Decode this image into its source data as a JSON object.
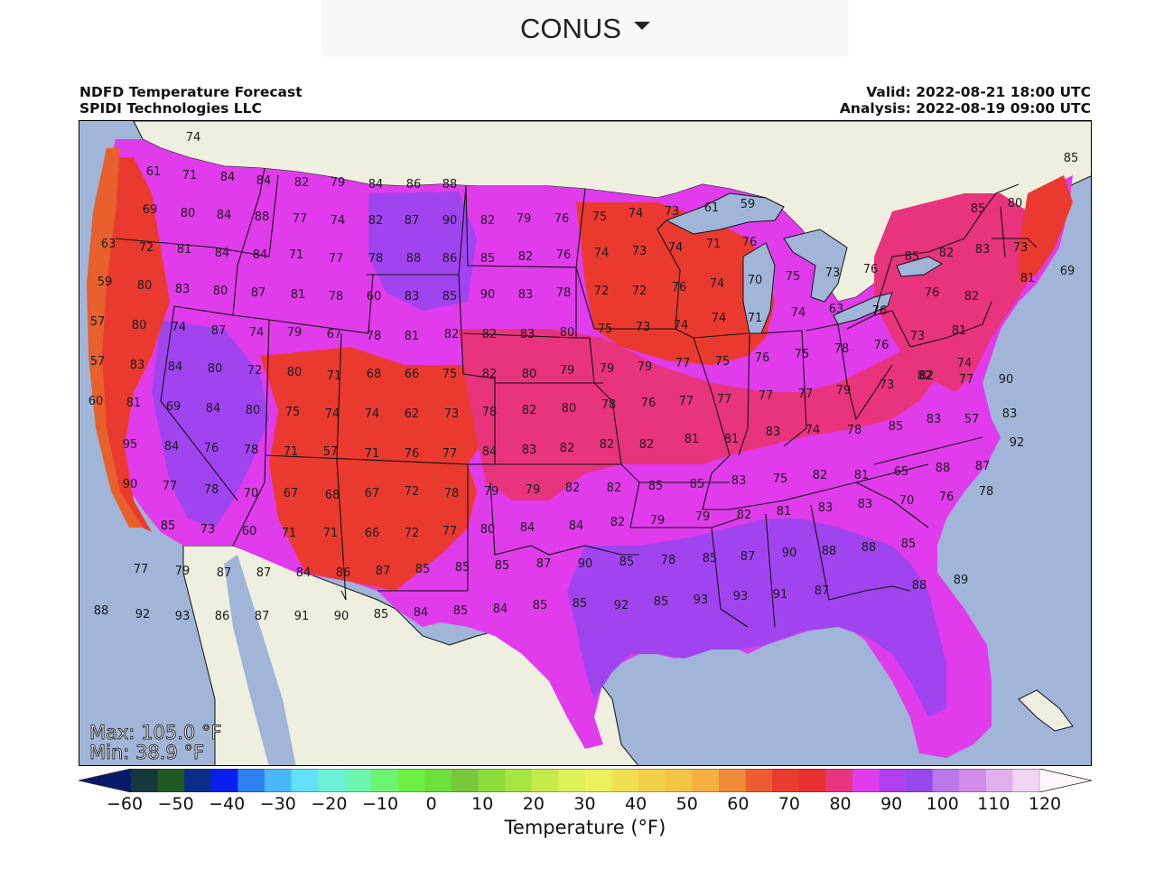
{
  "region_selector": {
    "label": "CONUS",
    "icon": "caret-down-icon"
  },
  "header": {
    "title_line1": "NDFD Temperature Forecast",
    "title_line2": "SPIDI Technologies LLC",
    "valid": "Valid: 2022-08-21 18:00 UTC",
    "analysis": "Analysis: 2022-08-19 09:00 UTC"
  },
  "stats": {
    "max": "Max: 105.0 °F",
    "min": "Min: 38.9 °F"
  },
  "colorbar": {
    "title": "Temperature (°F)",
    "ticks": [
      "−60",
      "−50",
      "−40",
      "−30",
      "−20",
      "−10",
      "0",
      "10",
      "20",
      "30",
      "40",
      "50",
      "60",
      "70",
      "80",
      "90",
      "100",
      "110",
      "120"
    ],
    "colors": [
      "#0a1a6a",
      "#16383a",
      "#1f5a24",
      "#0c2c8a",
      "#0a1ef0",
      "#2e82f0",
      "#4ab8f8",
      "#64e0f8",
      "#6cf0d8",
      "#6cf4b0",
      "#6cf470",
      "#6cf044",
      "#6ce03c",
      "#78c83c",
      "#8cdc3c",
      "#a8e444",
      "#c4ec48",
      "#dcf058",
      "#ecf05c",
      "#f0e050",
      "#f4d048",
      "#f4c444",
      "#f4b040",
      "#f08c38",
      "#ec5c30",
      "#ea3c2c",
      "#e83030",
      "#e8347c",
      "#e03cec",
      "#b040f0",
      "#9848ec",
      "#b878e8",
      "#d08ce8",
      "#e0b0ec",
      "#f0d4f4",
      "#fff6fc"
    ]
  },
  "map_colors": {
    "ocean": "#a0b5d8",
    "land_outside": "#efefe0",
    "cool_coast": "#e8602c",
    "warm_red": "#ea3a30",
    "pink": "#e8347c",
    "magenta": "#e03cec",
    "purple": "#a044f0",
    "lakes": "#a0b5d8"
  },
  "station_values": [
    {
      "v": "74"
    },
    {
      "v": "61"
    },
    {
      "v": "71"
    },
    {
      "v": "84"
    },
    {
      "v": "84"
    },
    {
      "v": "82"
    },
    {
      "v": "79"
    },
    {
      "v": "84"
    },
    {
      "v": "86"
    },
    {
      "v": "88"
    },
    {
      "v": "69"
    },
    {
      "v": "80"
    },
    {
      "v": "84"
    },
    {
      "v": "88"
    },
    {
      "v": "77"
    },
    {
      "v": "74"
    },
    {
      "v": "82"
    },
    {
      "v": "87"
    },
    {
      "v": "90"
    },
    {
      "v": "82"
    },
    {
      "v": "79"
    },
    {
      "v": "76"
    },
    {
      "v": "75"
    },
    {
      "v": "74"
    },
    {
      "v": "73"
    },
    {
      "v": "61"
    },
    {
      "v": "59"
    },
    {
      "v": "85"
    },
    {
      "v": "80"
    },
    {
      "v": "85"
    },
    {
      "v": "63"
    },
    {
      "v": "72"
    },
    {
      "v": "81"
    },
    {
      "v": "84"
    },
    {
      "v": "84"
    },
    {
      "v": "71"
    },
    {
      "v": "77"
    },
    {
      "v": "78"
    },
    {
      "v": "88"
    },
    {
      "v": "86"
    },
    {
      "v": "85"
    },
    {
      "v": "82"
    },
    {
      "v": "76"
    },
    {
      "v": "74"
    },
    {
      "v": "73"
    },
    {
      "v": "74"
    },
    {
      "v": "71"
    },
    {
      "v": "76"
    },
    {
      "v": "73"
    },
    {
      "v": "83"
    },
    {
      "v": "82"
    },
    {
      "v": "85"
    },
    {
      "v": "81"
    },
    {
      "v": "69"
    },
    {
      "v": "59"
    },
    {
      "v": "80"
    },
    {
      "v": "83"
    },
    {
      "v": "80"
    },
    {
      "v": "87"
    },
    {
      "v": "81"
    },
    {
      "v": "78"
    },
    {
      "v": "60"
    },
    {
      "v": "83"
    },
    {
      "v": "85"
    },
    {
      "v": "90"
    },
    {
      "v": "83"
    },
    {
      "v": "78"
    },
    {
      "v": "72"
    },
    {
      "v": "72"
    },
    {
      "v": "76"
    },
    {
      "v": "74"
    },
    {
      "v": "70"
    },
    {
      "v": "75"
    },
    {
      "v": "73"
    },
    {
      "v": "76"
    },
    {
      "v": "76"
    },
    {
      "v": "82"
    },
    {
      "v": "57"
    },
    {
      "v": "80"
    },
    {
      "v": "74"
    },
    {
      "v": "87"
    },
    {
      "v": "74"
    },
    {
      "v": "79"
    },
    {
      "v": "67"
    },
    {
      "v": "78"
    },
    {
      "v": "81"
    },
    {
      "v": "82"
    },
    {
      "v": "82"
    },
    {
      "v": "83"
    },
    {
      "v": "80"
    },
    {
      "v": "75"
    },
    {
      "v": "73"
    },
    {
      "v": "74"
    },
    {
      "v": "74"
    },
    {
      "v": "71"
    },
    {
      "v": "74"
    },
    {
      "v": "63"
    },
    {
      "v": "76"
    },
    {
      "v": "73"
    },
    {
      "v": "81"
    },
    {
      "v": "57"
    },
    {
      "v": "83"
    },
    {
      "v": "84"
    },
    {
      "v": "80"
    },
    {
      "v": "72"
    },
    {
      "v": "80"
    },
    {
      "v": "71"
    },
    {
      "v": "68"
    },
    {
      "v": "66"
    },
    {
      "v": "75"
    },
    {
      "v": "82"
    },
    {
      "v": "80"
    },
    {
      "v": "79"
    },
    {
      "v": "79"
    },
    {
      "v": "79"
    },
    {
      "v": "77"
    },
    {
      "v": "75"
    },
    {
      "v": "76"
    },
    {
      "v": "75"
    },
    {
      "v": "78"
    },
    {
      "v": "76"
    },
    {
      "v": "82"
    },
    {
      "v": "74"
    },
    {
      "v": "60"
    },
    {
      "v": "81"
    },
    {
      "v": "69"
    },
    {
      "v": "84"
    },
    {
      "v": "80"
    },
    {
      "v": "75"
    },
    {
      "v": "74"
    },
    {
      "v": "74"
    },
    {
      "v": "62"
    },
    {
      "v": "73"
    },
    {
      "v": "78"
    },
    {
      "v": "82"
    },
    {
      "v": "80"
    },
    {
      "v": "78"
    },
    {
      "v": "76"
    },
    {
      "v": "77"
    },
    {
      "v": "77"
    },
    {
      "v": "77"
    },
    {
      "v": "77"
    },
    {
      "v": "79"
    },
    {
      "v": "73"
    },
    {
      "v": "82"
    },
    {
      "v": "77"
    },
    {
      "v": "90"
    },
    {
      "v": "95"
    },
    {
      "v": "84"
    },
    {
      "v": "76"
    },
    {
      "v": "78"
    },
    {
      "v": "71"
    },
    {
      "v": "57"
    },
    {
      "v": "71"
    },
    {
      "v": "76"
    },
    {
      "v": "77"
    },
    {
      "v": "84"
    },
    {
      "v": "83"
    },
    {
      "v": "82"
    },
    {
      "v": "82"
    },
    {
      "v": "82"
    },
    {
      "v": "81"
    },
    {
      "v": "81"
    },
    {
      "v": "83"
    },
    {
      "v": "74"
    },
    {
      "v": "78"
    },
    {
      "v": "85"
    },
    {
      "v": "83"
    },
    {
      "v": "57"
    },
    {
      "v": "83"
    },
    {
      "v": "92"
    },
    {
      "v": "90"
    },
    {
      "v": "77"
    },
    {
      "v": "78"
    },
    {
      "v": "70"
    },
    {
      "v": "67"
    },
    {
      "v": "68"
    },
    {
      "v": "67"
    },
    {
      "v": "72"
    },
    {
      "v": "78"
    },
    {
      "v": "79"
    },
    {
      "v": "79"
    },
    {
      "v": "82"
    },
    {
      "v": "82"
    },
    {
      "v": "85"
    },
    {
      "v": "85"
    },
    {
      "v": "83"
    },
    {
      "v": "75"
    },
    {
      "v": "82"
    },
    {
      "v": "81"
    },
    {
      "v": "65"
    },
    {
      "v": "88"
    },
    {
      "v": "87"
    },
    {
      "v": "85"
    },
    {
      "v": "73"
    },
    {
      "v": "60"
    },
    {
      "v": "71"
    },
    {
      "v": "71"
    },
    {
      "v": "66"
    },
    {
      "v": "72"
    },
    {
      "v": "77"
    },
    {
      "v": "80"
    },
    {
      "v": "84"
    },
    {
      "v": "84"
    },
    {
      "v": "82"
    },
    {
      "v": "79"
    },
    {
      "v": "79"
    },
    {
      "v": "82"
    },
    {
      "v": "81"
    },
    {
      "v": "83"
    },
    {
      "v": "83"
    },
    {
      "v": "70"
    },
    {
      "v": "76"
    },
    {
      "v": "78"
    },
    {
      "v": "77"
    },
    {
      "v": "79"
    },
    {
      "v": "87"
    },
    {
      "v": "87"
    },
    {
      "v": "84"
    },
    {
      "v": "86"
    },
    {
      "v": "87"
    },
    {
      "v": "85"
    },
    {
      "v": "85"
    },
    {
      "v": "85"
    },
    {
      "v": "87"
    },
    {
      "v": "90"
    },
    {
      "v": "85"
    },
    {
      "v": "78"
    },
    {
      "v": "85"
    },
    {
      "v": "87"
    },
    {
      "v": "90"
    },
    {
      "v": "88"
    },
    {
      "v": "88"
    },
    {
      "v": "85"
    },
    {
      "v": "88"
    },
    {
      "v": "89"
    },
    {
      "v": "88"
    },
    {
      "v": "92"
    },
    {
      "v": "93"
    },
    {
      "v": "86"
    },
    {
      "v": "87"
    },
    {
      "v": "91"
    },
    {
      "v": "90"
    },
    {
      "v": "85"
    },
    {
      "v": "84"
    },
    {
      "v": "85"
    },
    {
      "v": "84"
    },
    {
      "v": "85"
    },
    {
      "v": "85"
    },
    {
      "v": "92"
    },
    {
      "v": "85"
    },
    {
      "v": "93"
    },
    {
      "v": "93"
    },
    {
      "v": "91"
    },
    {
      "v": "87"
    }
  ]
}
